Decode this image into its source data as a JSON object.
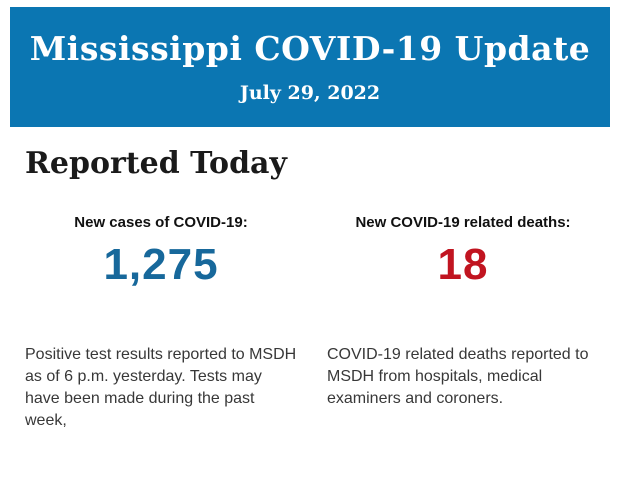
{
  "page": {
    "background_color": "#ffffff"
  },
  "header": {
    "background_color": "#0b76b2",
    "text_color": "#ffffff",
    "title": "Mississippi COVID-19 Update",
    "date": "July 29, 2022"
  },
  "main": {
    "heading": "Reported Today",
    "stats": [
      {
        "label": "New cases of COVID-19:",
        "value": "1,275",
        "value_color": "#17689b",
        "description": "Positive test results reported to MSDH as of 6 p.m. yesterday. Tests may have been made during the past week,"
      },
      {
        "label": "New COVID-19 related deaths:",
        "value": "18",
        "value_color": "#c11420",
        "description": "COVID-19 related deaths reported to MSDH from hospitals, medical examiners and coroners."
      }
    ]
  }
}
